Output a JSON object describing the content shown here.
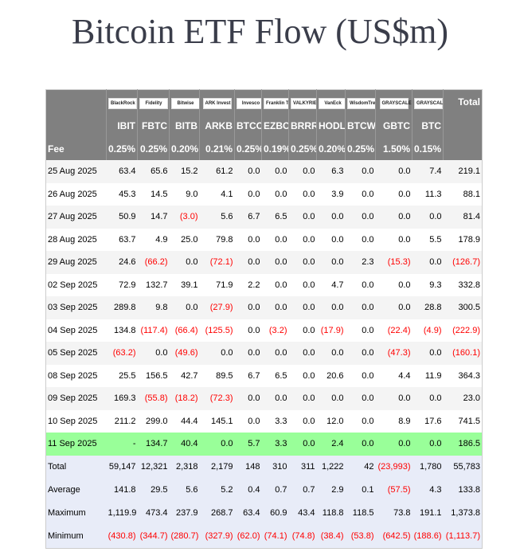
{
  "title": "Bitcoin ETF Flow (US$m)",
  "issuers": [
    "BlackRock",
    "Fidelity",
    "Bitwise",
    "ARK Invest",
    "Invesco",
    "Franklin Templeton",
    "VALKYRIE",
    "VanEck",
    "WisdomTree",
    "GRAYSCALE",
    "GRAYSCALE"
  ],
  "tickers": [
    "IBIT",
    "FBTC",
    "BITB",
    "ARKB",
    "BTCO",
    "EZBC",
    "BRRR",
    "HODL",
    "BTCW",
    "GBTC",
    "BTC"
  ],
  "total_label": "Total",
  "fee_label": "Fee",
  "fees": [
    "0.25%",
    "0.25%",
    "0.20%",
    "0.21%",
    "0.25%",
    "0.19%",
    "0.25%",
    "0.20%",
    "0.25%",
    "1.50%",
    "0.15%"
  ],
  "rows": [
    {
      "date": "25 Aug 2025",
      "values": [
        "63.4",
        "65.6",
        "15.2",
        "61.2",
        "0.0",
        "0.0",
        "0.0",
        "6.3",
        "0.0",
        "0.0",
        "7.4",
        "219.1"
      ]
    },
    {
      "date": "26 Aug 2025",
      "values": [
        "45.3",
        "14.5",
        "9.0",
        "4.1",
        "0.0",
        "0.0",
        "0.0",
        "3.9",
        "0.0",
        "0.0",
        "11.3",
        "88.1"
      ]
    },
    {
      "date": "27 Aug 2025",
      "values": [
        "50.9",
        "14.7",
        "(3.0)",
        "5.6",
        "6.7",
        "6.5",
        "0.0",
        "0.0",
        "0.0",
        "0.0",
        "0.0",
        "81.4"
      ]
    },
    {
      "date": "28 Aug 2025",
      "values": [
        "63.7",
        "4.9",
        "25.0",
        "79.8",
        "0.0",
        "0.0",
        "0.0",
        "0.0",
        "0.0",
        "0.0",
        "5.5",
        "178.9"
      ]
    },
    {
      "date": "29 Aug 2025",
      "values": [
        "24.6",
        "(66.2)",
        "0.0",
        "(72.1)",
        "0.0",
        "0.0",
        "0.0",
        "0.0",
        "2.3",
        "(15.3)",
        "0.0",
        "(126.7)"
      ]
    },
    {
      "date": "02 Sep 2025",
      "values": [
        "72.9",
        "132.7",
        "39.1",
        "71.9",
        "2.2",
        "0.0",
        "0.0",
        "4.7",
        "0.0",
        "0.0",
        "9.3",
        "332.8"
      ]
    },
    {
      "date": "03 Sep 2025",
      "values": [
        "289.8",
        "9.8",
        "0.0",
        "(27.9)",
        "0.0",
        "0.0",
        "0.0",
        "0.0",
        "0.0",
        "0.0",
        "28.8",
        "300.5"
      ]
    },
    {
      "date": "04 Sep 2025",
      "values": [
        "134.8",
        "(117.4)",
        "(66.4)",
        "(125.5)",
        "0.0",
        "(3.2)",
        "0.0",
        "(17.9)",
        "0.0",
        "(22.4)",
        "(4.9)",
        "(222.9)"
      ]
    },
    {
      "date": "05 Sep 2025",
      "values": [
        "(63.2)",
        "0.0",
        "(49.6)",
        "0.0",
        "0.0",
        "0.0",
        "0.0",
        "0.0",
        "0.0",
        "(47.3)",
        "0.0",
        "(160.1)"
      ]
    },
    {
      "date": "08 Sep 2025",
      "values": [
        "25.5",
        "156.5",
        "42.7",
        "89.5",
        "6.7",
        "6.5",
        "0.0",
        "20.6",
        "0.0",
        "4.4",
        "11.9",
        "364.3"
      ]
    },
    {
      "date": "09 Sep 2025",
      "values": [
        "169.3",
        "(55.8)",
        "(18.2)",
        "(72.3)",
        "0.0",
        "0.0",
        "0.0",
        "0.0",
        "0.0",
        "0.0",
        "0.0",
        "23.0"
      ]
    },
    {
      "date": "10 Sep 2025",
      "values": [
        "211.2",
        "299.0",
        "44.4",
        "145.1",
        "0.0",
        "3.3",
        "0.0",
        "12.0",
        "0.0",
        "8.9",
        "17.6",
        "741.5"
      ]
    },
    {
      "date": "11 Sep 2025",
      "values": [
        "-",
        "134.7",
        "40.4",
        "0.0",
        "5.7",
        "3.3",
        "0.0",
        "2.4",
        "0.0",
        "0.0",
        "0.0",
        "186.5"
      ],
      "highlight": true
    }
  ],
  "summary": [
    {
      "label": "Total",
      "values": [
        "59,147",
        "12,321",
        "2,318",
        "2,179",
        "148",
        "310",
        "311",
        "1,222",
        "42",
        "(23,993)",
        "1,780",
        "55,783"
      ]
    },
    {
      "label": "Average",
      "values": [
        "141.8",
        "29.5",
        "5.6",
        "5.2",
        "0.4",
        "0.7",
        "0.7",
        "2.9",
        "0.1",
        "(57.5)",
        "4.3",
        "133.8"
      ]
    },
    {
      "label": "Maximum",
      "values": [
        "1,119.9",
        "473.4",
        "237.9",
        "268.7",
        "63.4",
        "60.9",
        "43.4",
        "118.8",
        "118.5",
        "73.8",
        "191.1",
        "1,373.8"
      ]
    },
    {
      "label": "Minimum",
      "values": [
        "(430.8)",
        "(344.7)",
        "(280.7)",
        "(327.9)",
        "(62.0)",
        "(74.1)",
        "(74.8)",
        "(38.4)",
        "(53.8)",
        "(642.5)",
        "(188.6)",
        "(1,113.7)"
      ]
    }
  ],
  "colors": {
    "header_bg": "#808080",
    "negative": "#ff0000",
    "highlight": "#99ff99",
    "summary_bg": "#e8ecf8"
  }
}
